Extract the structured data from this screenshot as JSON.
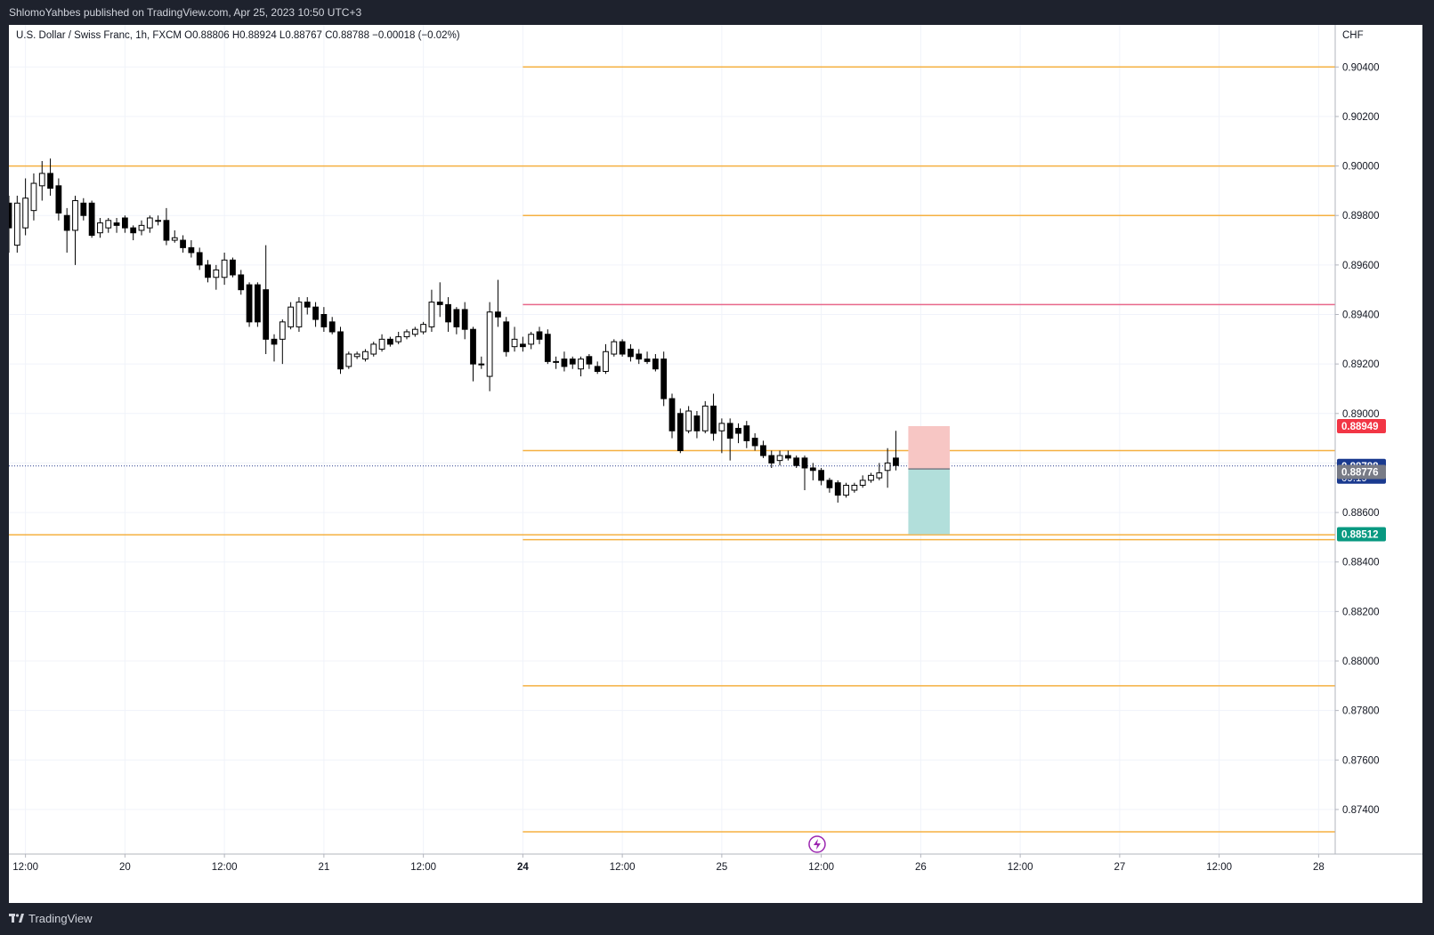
{
  "header": {
    "publisher": "ShlomoYahbes published on TradingView.com, Apr 25, 2023 10:50 UTC+3"
  },
  "legend": {
    "text": "U.S. Dollar / Swiss Franc, 1h, FXCM  O0.88806  H0.88924  L0.88767  C0.88788  −0.00018 (−0.02%)"
  },
  "footer": {
    "brand": "TradingView",
    "logo_icon": "tradingview-logo-icon"
  },
  "colors": {
    "background": "#ffffff",
    "grid": "#f0f3fa",
    "level_line": "#f5b041",
    "resistance_line": "#e8678a",
    "stop_zone": "#f7c6c4",
    "target_zone": "#b2dfdb",
    "stop_label": "#f23645",
    "target_label": "#089981",
    "price_label": "#1a3a8f",
    "entry_label": "#787b86",
    "candle": "#000000"
  },
  "chart_data": {
    "type": "candlestick",
    "symbol": "U.S. Dollar / Swiss Franc",
    "interval": "1h",
    "exchange": "FXCM",
    "currency_label": "CHF",
    "ohlc_display": {
      "open": "0.88806",
      "high": "0.88924",
      "low": "0.88767",
      "close": "0.88788",
      "change": "−0.00018 (−0.02%)"
    },
    "ylim": [
      0.8722,
      0.9057
    ],
    "y_ticks": [
      0.904,
      0.902,
      0.9,
      0.898,
      0.896,
      0.894,
      0.892,
      0.89,
      0.888,
      0.886,
      0.884,
      0.882,
      0.88,
      0.878,
      0.876,
      0.874
    ],
    "y_tick_labels": [
      "0.90400",
      "0.90200",
      "0.90000",
      "0.89800",
      "0.89600",
      "0.89400",
      "0.89200",
      "0.89000",
      "0.88800",
      "0.88600",
      "0.88400",
      "0.88200",
      "0.88000",
      "0.87800",
      "0.87600",
      "0.87400"
    ],
    "x_ticks": [
      {
        "t": 0,
        "label": "12:00",
        "bold": false
      },
      {
        "t": 12,
        "label": "20",
        "bold": false
      },
      {
        "t": 24,
        "label": "12:00",
        "bold": false
      },
      {
        "t": 36,
        "label": "21",
        "bold": false
      },
      {
        "t": 48,
        "label": "12:00",
        "bold": false
      },
      {
        "t": 60,
        "label": "24",
        "bold": true
      },
      {
        "t": 72,
        "label": "12:00",
        "bold": false
      },
      {
        "t": 84,
        "label": "25",
        "bold": false
      },
      {
        "t": 96,
        "label": "12:00",
        "bold": false
      },
      {
        "t": 108,
        "label": "26",
        "bold": false
      },
      {
        "t": 120,
        "label": "12:00",
        "bold": false
      },
      {
        "t": 132,
        "label": "27",
        "bold": false
      },
      {
        "t": 144,
        "label": "12:00",
        "bold": false
      },
      {
        "t": 156,
        "label": "28",
        "bold": false
      }
    ],
    "x_range": [
      -2,
      158
    ],
    "candles": [
      [
        -2,
        0.8985,
        0.8975,
        0.8988,
        0.8965
      ],
      [
        -1,
        0.8968,
        0.8985,
        0.8988,
        0.8965
      ],
      [
        0,
        0.8975,
        0.8987,
        0.8995,
        0.8972
      ],
      [
        1,
        0.8982,
        0.8993,
        0.8997,
        0.8978
      ],
      [
        2,
        0.8992,
        0.8997,
        0.9002,
        0.8986
      ],
      [
        3,
        0.8997,
        0.8991,
        0.9003,
        0.8988
      ],
      [
        4,
        0.8992,
        0.8981,
        0.8995,
        0.8978
      ],
      [
        5,
        0.898,
        0.8974,
        0.8983,
        0.8965
      ],
      [
        6,
        0.8974,
        0.8986,
        0.8988,
        0.896
      ],
      [
        7,
        0.8985,
        0.898,
        0.8987,
        0.8978
      ],
      [
        8,
        0.8985,
        0.8972,
        0.8986,
        0.8971
      ],
      [
        9,
        0.8973,
        0.8977,
        0.8979,
        0.8971
      ],
      [
        10,
        0.8975,
        0.8978,
        0.8979,
        0.8973
      ],
      [
        11,
        0.8977,
        0.8976,
        0.8979,
        0.8973
      ],
      [
        12,
        0.8979,
        0.8975,
        0.898,
        0.8973
      ],
      [
        13,
        0.8975,
        0.8973,
        0.8976,
        0.897
      ],
      [
        14,
        0.8974,
        0.8976,
        0.8978,
        0.8972
      ],
      [
        15,
        0.8975,
        0.8979,
        0.898,
        0.8973
      ],
      [
        16,
        0.8978,
        0.8978,
        0.898,
        0.8976
      ],
      [
        17,
        0.8978,
        0.897,
        0.8983,
        0.8968
      ],
      [
        18,
        0.897,
        0.8971,
        0.8974,
        0.8969
      ],
      [
        19,
        0.897,
        0.8967,
        0.8972,
        0.8965
      ],
      [
        20,
        0.8967,
        0.8965,
        0.897,
        0.8963
      ],
      [
        21,
        0.8965,
        0.896,
        0.8967,
        0.8958
      ],
      [
        22,
        0.896,
        0.8955,
        0.8962,
        0.8953
      ],
      [
        23,
        0.8955,
        0.8958,
        0.896,
        0.895
      ],
      [
        24,
        0.8955,
        0.8962,
        0.8965,
        0.8952
      ],
      [
        25,
        0.8962,
        0.8956,
        0.8963,
        0.8955
      ],
      [
        26,
        0.8956,
        0.895,
        0.8958,
        0.8948
      ],
      [
        27,
        0.8952,
        0.8937,
        0.8953,
        0.8935
      ],
      [
        28,
        0.8952,
        0.8937,
        0.8953,
        0.8935
      ],
      [
        29,
        0.895,
        0.893,
        0.8968,
        0.8924
      ],
      [
        30,
        0.893,
        0.8928,
        0.8932,
        0.8921
      ],
      [
        31,
        0.893,
        0.8937,
        0.8938,
        0.892
      ],
      [
        32,
        0.8935,
        0.8943,
        0.8945,
        0.8934
      ],
      [
        33,
        0.8935,
        0.8945,
        0.8947,
        0.8933
      ],
      [
        34,
        0.8945,
        0.8943,
        0.8947,
        0.894
      ],
      [
        35,
        0.8943,
        0.8938,
        0.8945,
        0.8935
      ],
      [
        36,
        0.894,
        0.8935,
        0.8943,
        0.8933
      ],
      [
        37,
        0.8937,
        0.8933,
        0.8939,
        0.8932
      ],
      [
        38,
        0.8933,
        0.8918,
        0.8935,
        0.8916
      ],
      [
        39,
        0.8919,
        0.8924,
        0.8925,
        0.8918
      ],
      [
        40,
        0.8923,
        0.8924,
        0.8925,
        0.8922
      ],
      [
        41,
        0.8922,
        0.8925,
        0.8926,
        0.8921
      ],
      [
        42,
        0.8924,
        0.8928,
        0.8929,
        0.8923
      ],
      [
        43,
        0.8926,
        0.893,
        0.8932,
        0.8925
      ],
      [
        44,
        0.893,
        0.8928,
        0.8931,
        0.8927
      ],
      [
        45,
        0.8929,
        0.8931,
        0.8933,
        0.8928
      ],
      [
        46,
        0.8931,
        0.8933,
        0.8934,
        0.893
      ],
      [
        47,
        0.8932,
        0.8934,
        0.8935,
        0.8931
      ],
      [
        48,
        0.8933,
        0.8936,
        0.8937,
        0.8932
      ],
      [
        49,
        0.8935,
        0.8945,
        0.895,
        0.8933
      ],
      [
        50,
        0.8945,
        0.8944,
        0.8953,
        0.8939
      ],
      [
        51,
        0.8944,
        0.8937,
        0.8947,
        0.8933
      ],
      [
        52,
        0.8942,
        0.8935,
        0.8943,
        0.8932
      ],
      [
        53,
        0.8942,
        0.8934,
        0.8945,
        0.893
      ],
      [
        54,
        0.8934,
        0.892,
        0.8935,
        0.8913
      ],
      [
        55,
        0.892,
        0.892,
        0.8923,
        0.8918
      ],
      [
        56,
        0.8915,
        0.8941,
        0.8945,
        0.8909
      ],
      [
        57,
        0.8941,
        0.8939,
        0.8954,
        0.8935
      ],
      [
        58,
        0.8937,
        0.8925,
        0.8939,
        0.8923
      ],
      [
        59,
        0.8927,
        0.893,
        0.8935,
        0.8925
      ],
      [
        60,
        0.8928,
        0.8927,
        0.8931,
        0.8925
      ],
      [
        61,
        0.8928,
        0.8932,
        0.8933,
        0.8926
      ],
      [
        62,
        0.8933,
        0.893,
        0.8935,
        0.8928
      ],
      [
        63,
        0.8932,
        0.8921,
        0.8934,
        0.892
      ],
      [
        64,
        0.8921,
        0.8921,
        0.8923,
        0.8918
      ],
      [
        65,
        0.8922,
        0.8919,
        0.8925,
        0.8917
      ],
      [
        66,
        0.8922,
        0.892,
        0.8923,
        0.8918
      ],
      [
        67,
        0.8918,
        0.8922,
        0.8923,
        0.8915
      ],
      [
        68,
        0.8923,
        0.892,
        0.8924,
        0.8918
      ],
      [
        69,
        0.8919,
        0.8917,
        0.8921,
        0.8916
      ],
      [
        70,
        0.8917,
        0.8925,
        0.8928,
        0.8916
      ],
      [
        71,
        0.8924,
        0.8929,
        0.893,
        0.8923
      ],
      [
        72,
        0.8929,
        0.8924,
        0.893,
        0.8923
      ],
      [
        73,
        0.8926,
        0.8923,
        0.8928,
        0.8921
      ],
      [
        74,
        0.8924,
        0.8922,
        0.8926,
        0.892
      ],
      [
        75,
        0.8922,
        0.8921,
        0.8925,
        0.892
      ],
      [
        76,
        0.8922,
        0.8918,
        0.8924,
        0.8917
      ],
      [
        77,
        0.8922,
        0.8906,
        0.8925,
        0.8903
      ],
      [
        78,
        0.8906,
        0.8893,
        0.8908,
        0.889
      ],
      [
        79,
        0.89,
        0.8885,
        0.8902,
        0.8884
      ],
      [
        80,
        0.8893,
        0.8901,
        0.8903,
        0.8892
      ],
      [
        81,
        0.8899,
        0.8893,
        0.8901,
        0.889
      ],
      [
        82,
        0.8893,
        0.8903,
        0.8905,
        0.8892
      ],
      [
        83,
        0.8903,
        0.8892,
        0.8908,
        0.8889
      ],
      [
        84,
        0.8893,
        0.8896,
        0.8898,
        0.8884
      ],
      [
        85,
        0.8896,
        0.889,
        0.8898,
        0.8881
      ],
      [
        86,
        0.8894,
        0.8892,
        0.8896,
        0.8888
      ],
      [
        87,
        0.8895,
        0.8889,
        0.8897,
        0.8886
      ],
      [
        88,
        0.889,
        0.8887,
        0.8892,
        0.8885
      ],
      [
        89,
        0.8887,
        0.8883,
        0.8889,
        0.8882
      ],
      [
        90,
        0.8883,
        0.888,
        0.8885,
        0.8878
      ],
      [
        91,
        0.8881,
        0.8883,
        0.8885,
        0.8879
      ],
      [
        92,
        0.8883,
        0.8882,
        0.8885,
        0.8881
      ],
      [
        93,
        0.8882,
        0.8879,
        0.8883,
        0.8878
      ],
      [
        94,
        0.8882,
        0.8878,
        0.8883,
        0.8869
      ],
      [
        95,
        0.8878,
        0.8877,
        0.888,
        0.8873
      ],
      [
        96,
        0.8877,
        0.8873,
        0.8878,
        0.8871
      ],
      [
        97,
        0.8873,
        0.887,
        0.8874,
        0.8868
      ],
      [
        98,
        0.8872,
        0.8867,
        0.8873,
        0.8864
      ],
      [
        99,
        0.8867,
        0.8871,
        0.8872,
        0.8866
      ],
      [
        100,
        0.8869,
        0.8871,
        0.8872,
        0.8868
      ],
      [
        101,
        0.8871,
        0.8873,
        0.8875,
        0.887
      ],
      [
        102,
        0.8873,
        0.8875,
        0.8876,
        0.8872
      ],
      [
        103,
        0.8874,
        0.8876,
        0.888,
        0.8873
      ],
      [
        104,
        0.8877,
        0.888,
        0.8886,
        0.887
      ],
      [
        105,
        0.8882,
        0.8879,
        0.8893,
        0.8877
      ]
    ],
    "horizontal_levels": [
      {
        "price": 0.904,
        "t_start": 60,
        "role": "level"
      },
      {
        "price": 0.9,
        "t_start": -2,
        "role": "level"
      },
      {
        "price": 0.898,
        "t_start": 60,
        "role": "level"
      },
      {
        "price": 0.8944,
        "t_start": 60,
        "role": "resistance"
      },
      {
        "price": 0.8885,
        "t_start": 60,
        "role": "level"
      },
      {
        "price": 0.8851,
        "t_start": -2,
        "role": "level"
      },
      {
        "price": 0.8849,
        "t_start": 60,
        "role": "level"
      },
      {
        "price": 0.879,
        "t_start": 60,
        "role": "level"
      },
      {
        "price": 0.8731,
        "t_start": 60,
        "role": "level"
      }
    ],
    "position": {
      "t_start": 106.5,
      "t_end": 111.5,
      "entry": 0.88776,
      "stop": 0.88949,
      "target": 0.88512
    },
    "price_labels": {
      "stop": "0.88949",
      "current": "0.88788",
      "countdown": "09:19",
      "entry": "0.88776",
      "target": "0.88512"
    },
    "current_price": 0.88788
  }
}
